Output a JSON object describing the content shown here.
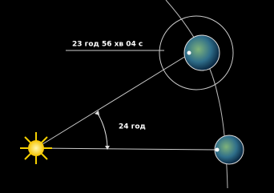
{
  "labels": {
    "sidereal": "23 год 56 хв 04 с",
    "solar": "24 год"
  }
}
